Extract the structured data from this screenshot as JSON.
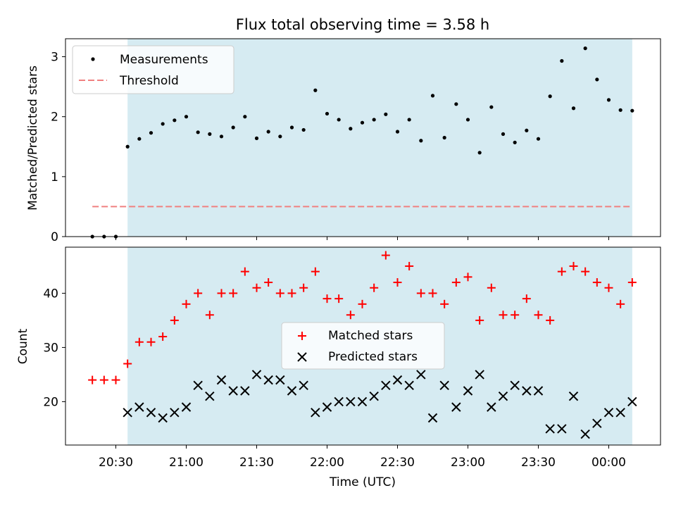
{
  "chart_data": [
    {
      "type": "scatter",
      "title": "Flux total observing time = 3.58 h",
      "ylabel": "Matched/Predicted stars",
      "xlabel": "",
      "ylim": [
        0,
        3.3
      ],
      "yticks": [
        "0",
        "1",
        "2",
        "3"
      ],
      "shaded_span": [
        "20:35",
        "00:10"
      ],
      "shade_color": "#add8e6",
      "legend_position": "upper-left",
      "series": [
        {
          "name": "Measurements",
          "marker": "dot",
          "color": "#000000",
          "x": [
            "20:20",
            "20:25",
            "20:30",
            "20:35",
            "20:40",
            "20:45",
            "20:50",
            "20:55",
            "21:00",
            "21:05",
            "21:10",
            "21:15",
            "21:20",
            "21:25",
            "21:30",
            "21:35",
            "21:40",
            "21:45",
            "21:50",
            "21:55",
            "22:00",
            "22:05",
            "22:10",
            "22:15",
            "22:20",
            "22:25",
            "22:30",
            "22:35",
            "22:40",
            "22:45",
            "22:50",
            "22:55",
            "23:00",
            "23:05",
            "23:10",
            "23:15",
            "23:20",
            "23:25",
            "23:30",
            "23:35",
            "23:40",
            "23:45",
            "23:50",
            "23:55",
            "00:00",
            "00:05",
            "00:10"
          ],
          "y": [
            0,
            0,
            0,
            1.5,
            1.63,
            1.73,
            1.88,
            1.94,
            2.0,
            1.74,
            1.71,
            1.67,
            1.82,
            2.0,
            1.64,
            1.75,
            1.67,
            1.82,
            1.78,
            2.44,
            2.05,
            1.95,
            1.8,
            1.9,
            1.95,
            2.04,
            1.75,
            1.95,
            1.6,
            2.35,
            1.65,
            2.21,
            1.95,
            1.4,
            2.16,
            1.71,
            1.57,
            1.77,
            1.63,
            2.34,
            2.93,
            2.14,
            3.14,
            2.62,
            2.28,
            2.11,
            2.1
          ]
        },
        {
          "name": "Threshold",
          "marker": "dashed-line",
          "color": "#f08080",
          "x": [
            "20:20",
            "00:10"
          ],
          "y": [
            0.5,
            0.5
          ]
        }
      ]
    },
    {
      "type": "scatter",
      "title": "",
      "ylabel": "Count",
      "xlabel": "Time (UTC)",
      "ylim": [
        12,
        48.5
      ],
      "yticks": [
        "20",
        "30",
        "40"
      ],
      "xticks": [
        "20:30",
        "21:00",
        "21:30",
        "22:00",
        "22:30",
        "23:00",
        "23:30",
        "00:00"
      ],
      "shaded_span": [
        "20:35",
        "00:10"
      ],
      "shade_color": "#add8e6",
      "legend_position": "center",
      "series": [
        {
          "name": "Matched stars",
          "marker": "plus",
          "color": "#ff0000",
          "x": [
            "20:20",
            "20:25",
            "20:30",
            "20:35",
            "20:40",
            "20:45",
            "20:50",
            "20:55",
            "21:00",
            "21:05",
            "21:10",
            "21:15",
            "21:20",
            "21:25",
            "21:30",
            "21:35",
            "21:40",
            "21:45",
            "21:50",
            "21:55",
            "22:00",
            "22:05",
            "22:10",
            "22:15",
            "22:20",
            "22:25",
            "22:30",
            "22:35",
            "22:40",
            "22:45",
            "22:50",
            "22:55",
            "23:00",
            "23:05",
            "23:10",
            "23:15",
            "23:20",
            "23:25",
            "23:30",
            "23:35",
            "23:40",
            "23:45",
            "23:50",
            "23:55",
            "00:00",
            "00:05",
            "00:10"
          ],
          "y": [
            24,
            24,
            24,
            27,
            31,
            31,
            32,
            35,
            38,
            40,
            36,
            40,
            40,
            44,
            41,
            42,
            40,
            40,
            41,
            44,
            39,
            39,
            36,
            38,
            41,
            47,
            42,
            45,
            40,
            40,
            38,
            42,
            43,
            35,
            41,
            36,
            36,
            39,
            36,
            35,
            44,
            45,
            44,
            42,
            41,
            38,
            42
          ]
        },
        {
          "name": "Predicted stars",
          "marker": "x",
          "color": "#000000",
          "x": [
            "20:35",
            "20:40",
            "20:45",
            "20:50",
            "20:55",
            "21:00",
            "21:05",
            "21:10",
            "21:15",
            "21:20",
            "21:25",
            "21:30",
            "21:35",
            "21:40",
            "21:45",
            "21:50",
            "21:55",
            "22:00",
            "22:05",
            "22:10",
            "22:15",
            "22:20",
            "22:25",
            "22:30",
            "22:35",
            "22:40",
            "22:45",
            "22:50",
            "22:55",
            "23:00",
            "23:05",
            "23:10",
            "23:15",
            "23:20",
            "23:25",
            "23:30",
            "23:35",
            "23:40",
            "23:45",
            "23:50",
            "23:55",
            "00:00",
            "00:05",
            "00:10"
          ],
          "y": [
            18,
            19,
            18,
            17,
            18,
            19,
            23,
            21,
            24,
            22,
            22,
            25,
            24,
            24,
            22,
            23,
            18,
            19,
            20,
            20,
            20,
            21,
            23,
            24,
            23,
            25,
            17,
            23,
            19,
            22,
            25,
            19,
            21,
            23,
            22,
            22,
            15,
            15,
            21,
            14,
            16,
            18,
            18,
            20
          ]
        }
      ]
    }
  ]
}
